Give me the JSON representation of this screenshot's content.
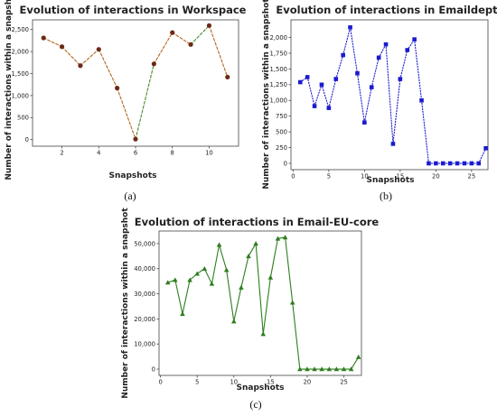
{
  "chart_data": [
    {
      "type": "line",
      "title": "Evolution of interactions in Workspace",
      "xlabel": "Snapshots",
      "ylabel": "Number of interactions within a snapshot",
      "caption": "(a)",
      "xlim": [
        0.4,
        11.6
      ],
      "ylim": [
        -150,
        2720
      ],
      "xticks": [
        2,
        4,
        6,
        8,
        10
      ],
      "yticks": [
        0,
        500,
        1000,
        1500,
        2000,
        2500
      ],
      "ytick_labels": [
        "0",
        "500",
        "1,000",
        "1,500",
        "2,000",
        "2,500"
      ],
      "series": [
        {
          "x": [
            1,
            2,
            3,
            4,
            5,
            6,
            7,
            8,
            9,
            10,
            11
          ],
          "y": [
            2310,
            2110,
            1680,
            2050,
            1170,
            10,
            1720,
            2430,
            2160,
            2590,
            1420
          ],
          "line_color": "#b5651d",
          "line_style": "dashed",
          "segment_colors": [
            "#b5651d",
            "#b5651d",
            "#b5651d",
            "#b5651d",
            "#b5651d",
            "#4a8c2a",
            "#b5651d",
            "#b5651d",
            "#4a8c2a",
            "#b5651d"
          ],
          "marker": "circle",
          "marker_color": "#6b2a16"
        }
      ]
    },
    {
      "type": "line",
      "title": "Evolution of interactions in Emaildept3",
      "xlabel": "Snapshots",
      "ylabel": "Number of interactions within a snapshot",
      "caption": "(b)",
      "xlim": [
        -0.3,
        27.3
      ],
      "ylim": [
        -100,
        2280
      ],
      "xticks": [
        0,
        5,
        10,
        15,
        20,
        25
      ],
      "yticks": [
        0,
        250,
        500,
        750,
        1000,
        1250,
        1500,
        1750,
        2000
      ],
      "ytick_labels": [
        "0",
        "250",
        "500",
        "750",
        "1,000",
        "1,250",
        "1,500",
        "1,750",
        "2,000"
      ],
      "series": [
        {
          "x": [
            1,
            2,
            3,
            4,
            5,
            6,
            7,
            8,
            9,
            10,
            11,
            12,
            13,
            14,
            15,
            16,
            17,
            18,
            19,
            20,
            21,
            22,
            23,
            24,
            25,
            26,
            27
          ],
          "y": [
            1290,
            1370,
            910,
            1250,
            880,
            1340,
            1720,
            2160,
            1430,
            650,
            1210,
            1680,
            1890,
            310,
            1340,
            1800,
            1970,
            1000,
            0,
            0,
            0,
            0,
            0,
            0,
            0,
            0,
            240
          ],
          "line_color": "#1a1ad0",
          "line_style": "dotted",
          "marker": "square",
          "marker_color": "#1a1ad0"
        }
      ]
    },
    {
      "type": "line",
      "title": "Evolution of interactions in Email-EU-core",
      "xlabel": "Snapshots",
      "ylabel": "Number of interactions within a snapshot",
      "caption": "(c)",
      "xlim": [
        -0.2,
        27.4
      ],
      "ylim": [
        -2500,
        55000
      ],
      "xticks": [
        0,
        5,
        10,
        15,
        20,
        25
      ],
      "yticks": [
        0,
        10000,
        20000,
        30000,
        40000,
        50000
      ],
      "ytick_labels": [
        "0",
        "10,000",
        "20,000",
        "30,000",
        "40,000",
        "50,000"
      ],
      "series": [
        {
          "x": [
            1,
            2,
            3,
            4,
            5,
            6,
            7,
            8,
            9,
            10,
            11,
            12,
            13,
            14,
            15,
            16,
            17,
            18,
            19,
            20,
            21,
            22,
            23,
            24,
            25,
            26,
            27
          ],
          "y": [
            34500,
            35500,
            22000,
            35500,
            38000,
            40000,
            34000,
            49500,
            39500,
            19000,
            32500,
            45000,
            50000,
            14000,
            36500,
            52000,
            52500,
            26500,
            0,
            0,
            0,
            0,
            0,
            0,
            0,
            0,
            4800
          ],
          "line_color": "#2f7d1f",
          "line_style": "solid",
          "marker": "triangle",
          "marker_color": "#2f7d1f"
        }
      ]
    }
  ]
}
